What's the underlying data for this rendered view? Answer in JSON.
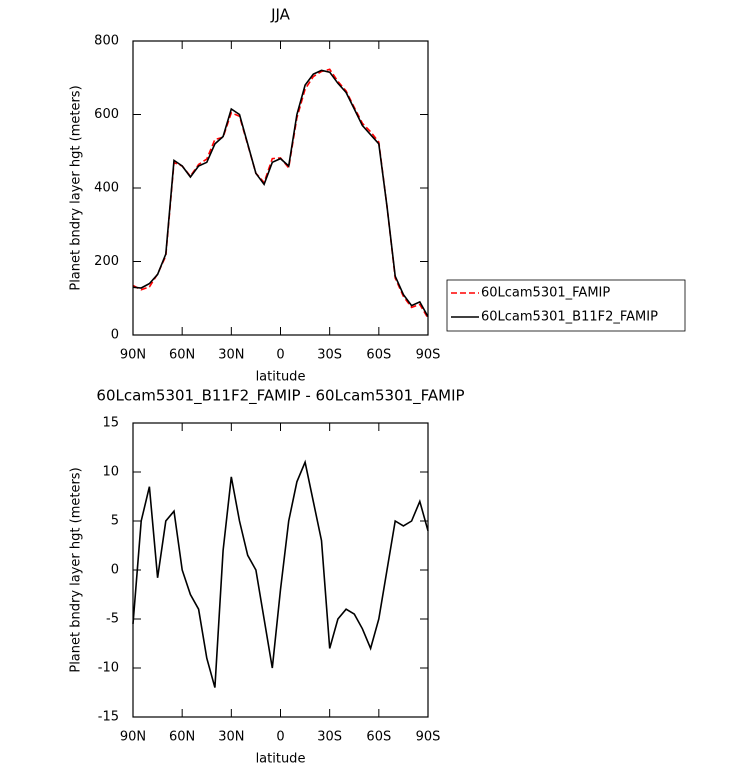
{
  "chart_data": [
    {
      "type": "line",
      "title": "JJA",
      "xlabel": "latitude",
      "ylabel": "Planet bndry layer hgt (meters)",
      "x": [
        90,
        85,
        80,
        75,
        70,
        65,
        60,
        55,
        50,
        45,
        40,
        35,
        30,
        25,
        20,
        15,
        10,
        5,
        0,
        -5,
        -10,
        -15,
        -20,
        -25,
        -30,
        -35,
        -40,
        -45,
        -50,
        -55,
        -60,
        -65,
        -70,
        -75,
        -80,
        -85,
        -90
      ],
      "series": [
        {
          "name": "60Lcam5301_FAMIP",
          "color": "#ff0000",
          "linestyle": "dashed",
          "values": [
            135,
            123,
            131,
            166,
            215,
            469,
            460,
            432,
            464,
            479,
            532,
            538,
            605,
            595,
            518,
            440,
            415,
            480,
            482,
            455,
            591,
            669,
            703,
            717,
            723,
            690,
            664,
            619,
            576,
            553,
            525,
            350,
            155,
            105,
            75,
            83,
            46
          ]
        },
        {
          "name": "60Lcam5301_B11F2_FAMIP",
          "color": "#000000",
          "linestyle": "solid",
          "values": [
            130,
            128,
            140,
            165,
            220,
            475,
            460,
            430,
            460,
            470,
            520,
            540,
            615,
            600,
            520,
            440,
            410,
            470,
            480,
            460,
            600,
            680,
            710,
            720,
            715,
            685,
            660,
            615,
            570,
            545,
            520,
            350,
            160,
            110,
            80,
            90,
            50
          ]
        }
      ],
      "xlim": [
        90,
        -90
      ],
      "xticks": [
        {
          "value": 90,
          "label": "90N"
        },
        {
          "value": 60,
          "label": "60N"
        },
        {
          "value": 30,
          "label": "30N"
        },
        0,
        {
          "value": -30,
          "label": "30S"
        },
        {
          "value": -60,
          "label": "60S"
        },
        {
          "value": -90,
          "label": "90S"
        }
      ],
      "ylim": [
        0,
        800
      ],
      "yticks": [
        0,
        200,
        400,
        600,
        800
      ],
      "legend": "right"
    },
    {
      "type": "line",
      "title": "60Lcam5301_B11F2_FAMIP - 60Lcam5301_FAMIP",
      "xlabel": "latitude",
      "ylabel": "Planet bndry layer hgt (meters)",
      "x": [
        90,
        85,
        80,
        75,
        70,
        65,
        60,
        55,
        50,
        45,
        40,
        35,
        30,
        25,
        20,
        15,
        10,
        5,
        0,
        -5,
        -10,
        -15,
        -20,
        -25,
        -30,
        -35,
        -40,
        -45,
        -50,
        -55,
        -60,
        -65,
        -70,
        -75,
        -80,
        -85,
        -90
      ],
      "series": [
        {
          "color": "#000000",
          "linestyle": "solid",
          "values": [
            -5.5,
            5,
            8.5,
            -0.8,
            5,
            6,
            0,
            -2.5,
            -4,
            -9,
            -12,
            2,
            9.5,
            5,
            1.5,
            0,
            -5,
            -10,
            -2,
            5,
            9,
            11,
            7,
            3,
            -8,
            -5,
            -4,
            -4.5,
            -6,
            -8,
            -5,
            0,
            5,
            4.5,
            5,
            7,
            4
          ]
        }
      ],
      "xlim": [
        90,
        -90
      ],
      "xticks": [
        {
          "value": 90,
          "label": "90N"
        },
        {
          "value": 60,
          "label": "60N"
        },
        {
          "value": 30,
          "label": "30N"
        },
        0,
        {
          "value": -30,
          "label": "30S"
        },
        {
          "value": -60,
          "label": "60S"
        },
        {
          "value": -90,
          "label": "90S"
        }
      ],
      "ylim": [
        -15,
        15
      ],
      "yticks": [
        -15,
        -10,
        -5,
        0,
        5,
        10,
        15
      ]
    }
  ]
}
